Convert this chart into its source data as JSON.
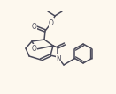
{
  "bg_color": "#fdf8ee",
  "bond_color": "#4a4a5a",
  "line_width": 1.1,
  "figsize": [
    1.31,
    1.07
  ],
  "dpi": 100,
  "xlim": [
    0,
    131
  ],
  "ylim": [
    0,
    107
  ]
}
